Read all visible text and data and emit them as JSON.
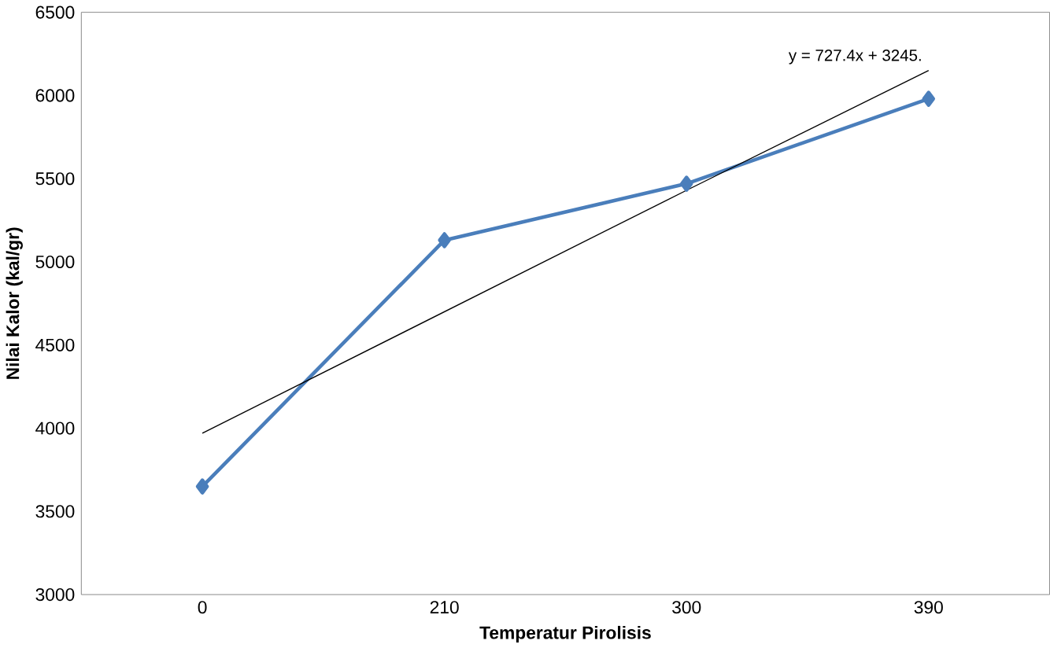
{
  "chart_data": {
    "type": "line",
    "xlabel": "Temperatur Pirolisis",
    "ylabel": "Nilai Kalor (kal/gr)",
    "categories": [
      "0",
      "210",
      "300",
      "390"
    ],
    "series": [
      {
        "values": [
          3650,
          5130,
          5470,
          5980
        ],
        "color": "#4a7ebb",
        "marker": "diamond"
      },
      {
        "type": "line",
        "values": [
          3970,
          4700,
          5430,
          6150
        ],
        "color": "#000000",
        "marker": "none"
      }
    ],
    "ylim": [
      3000,
      6500
    ],
    "yticks": [
      3000,
      3500,
      4000,
      4500,
      5000,
      5500,
      6000,
      6500
    ],
    "annotations": [
      {
        "text": "y = 727.4x  + 3245.",
        "x": "390",
        "y": 6150
      }
    ]
  }
}
